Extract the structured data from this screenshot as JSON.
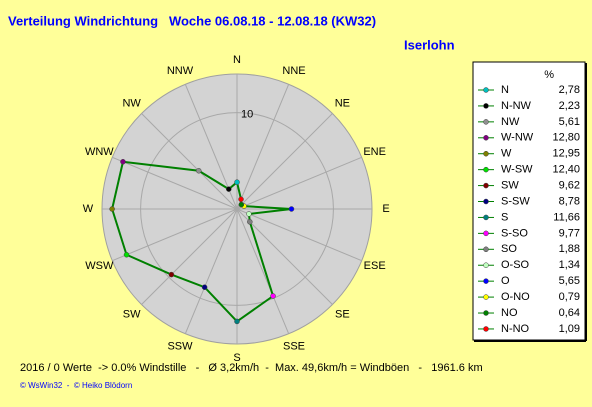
{
  "chart_data": {
    "type": "radar",
    "title": "Verteilung Windrichtung   Woche 06.08.18 - 12.08.18 (KW32)",
    "subtitle": "Iserlohn",
    "directions": [
      "N",
      "NNE",
      "NE",
      "ENE",
      "E",
      "ESE",
      "SE",
      "SSE",
      "S",
      "SSW",
      "SW",
      "WSW",
      "W",
      "WNW",
      "NW",
      "NNW"
    ],
    "legend_header": "%",
    "categories": [
      "N",
      "N-NW",
      "NW",
      "W-NW",
      "W",
      "W-SW",
      "SW",
      "S-SW",
      "S",
      "S-SO",
      "SO",
      "O-SO",
      "O",
      "O-NO",
      "NO",
      "N-NO"
    ],
    "values": [
      2.78,
      2.23,
      5.61,
      12.8,
      12.95,
      12.4,
      9.62,
      8.78,
      11.66,
      9.77,
      1.88,
      1.34,
      5.65,
      0.79,
      0.64,
      1.09
    ],
    "value_labels": [
      "2,78",
      "2,23",
      "5,61",
      "12,80",
      "12,95",
      "12,40",
      "9,62",
      "8,78",
      "11,66",
      "9,77",
      "1,88",
      "1,34",
      "5,65",
      "0,79",
      "0,64",
      "1,09"
    ],
    "colors": [
      "#00c0c0",
      "#000000",
      "#909090",
      "#800080",
      "#808000",
      "#00e000",
      "#800000",
      "#000080",
      "#008080",
      "#ff00ff",
      "#808080",
      "#c0ffc0",
      "#0000ff",
      "#ffff00",
      "#008000",
      "#ff0000"
    ],
    "line_color": "#008000",
    "rlim": [
      0,
      14
    ],
    "rticks": [
      10
    ],
    "footer": [
      "2016 / 0 Werte  -> 0.0% Windstille   -   Ø 3,2km/h  -  Max. 49,6km/h = Windböen   -   1961.6 km",
      "© WsWin32  -  © Heiko Blödorn"
    ]
  }
}
